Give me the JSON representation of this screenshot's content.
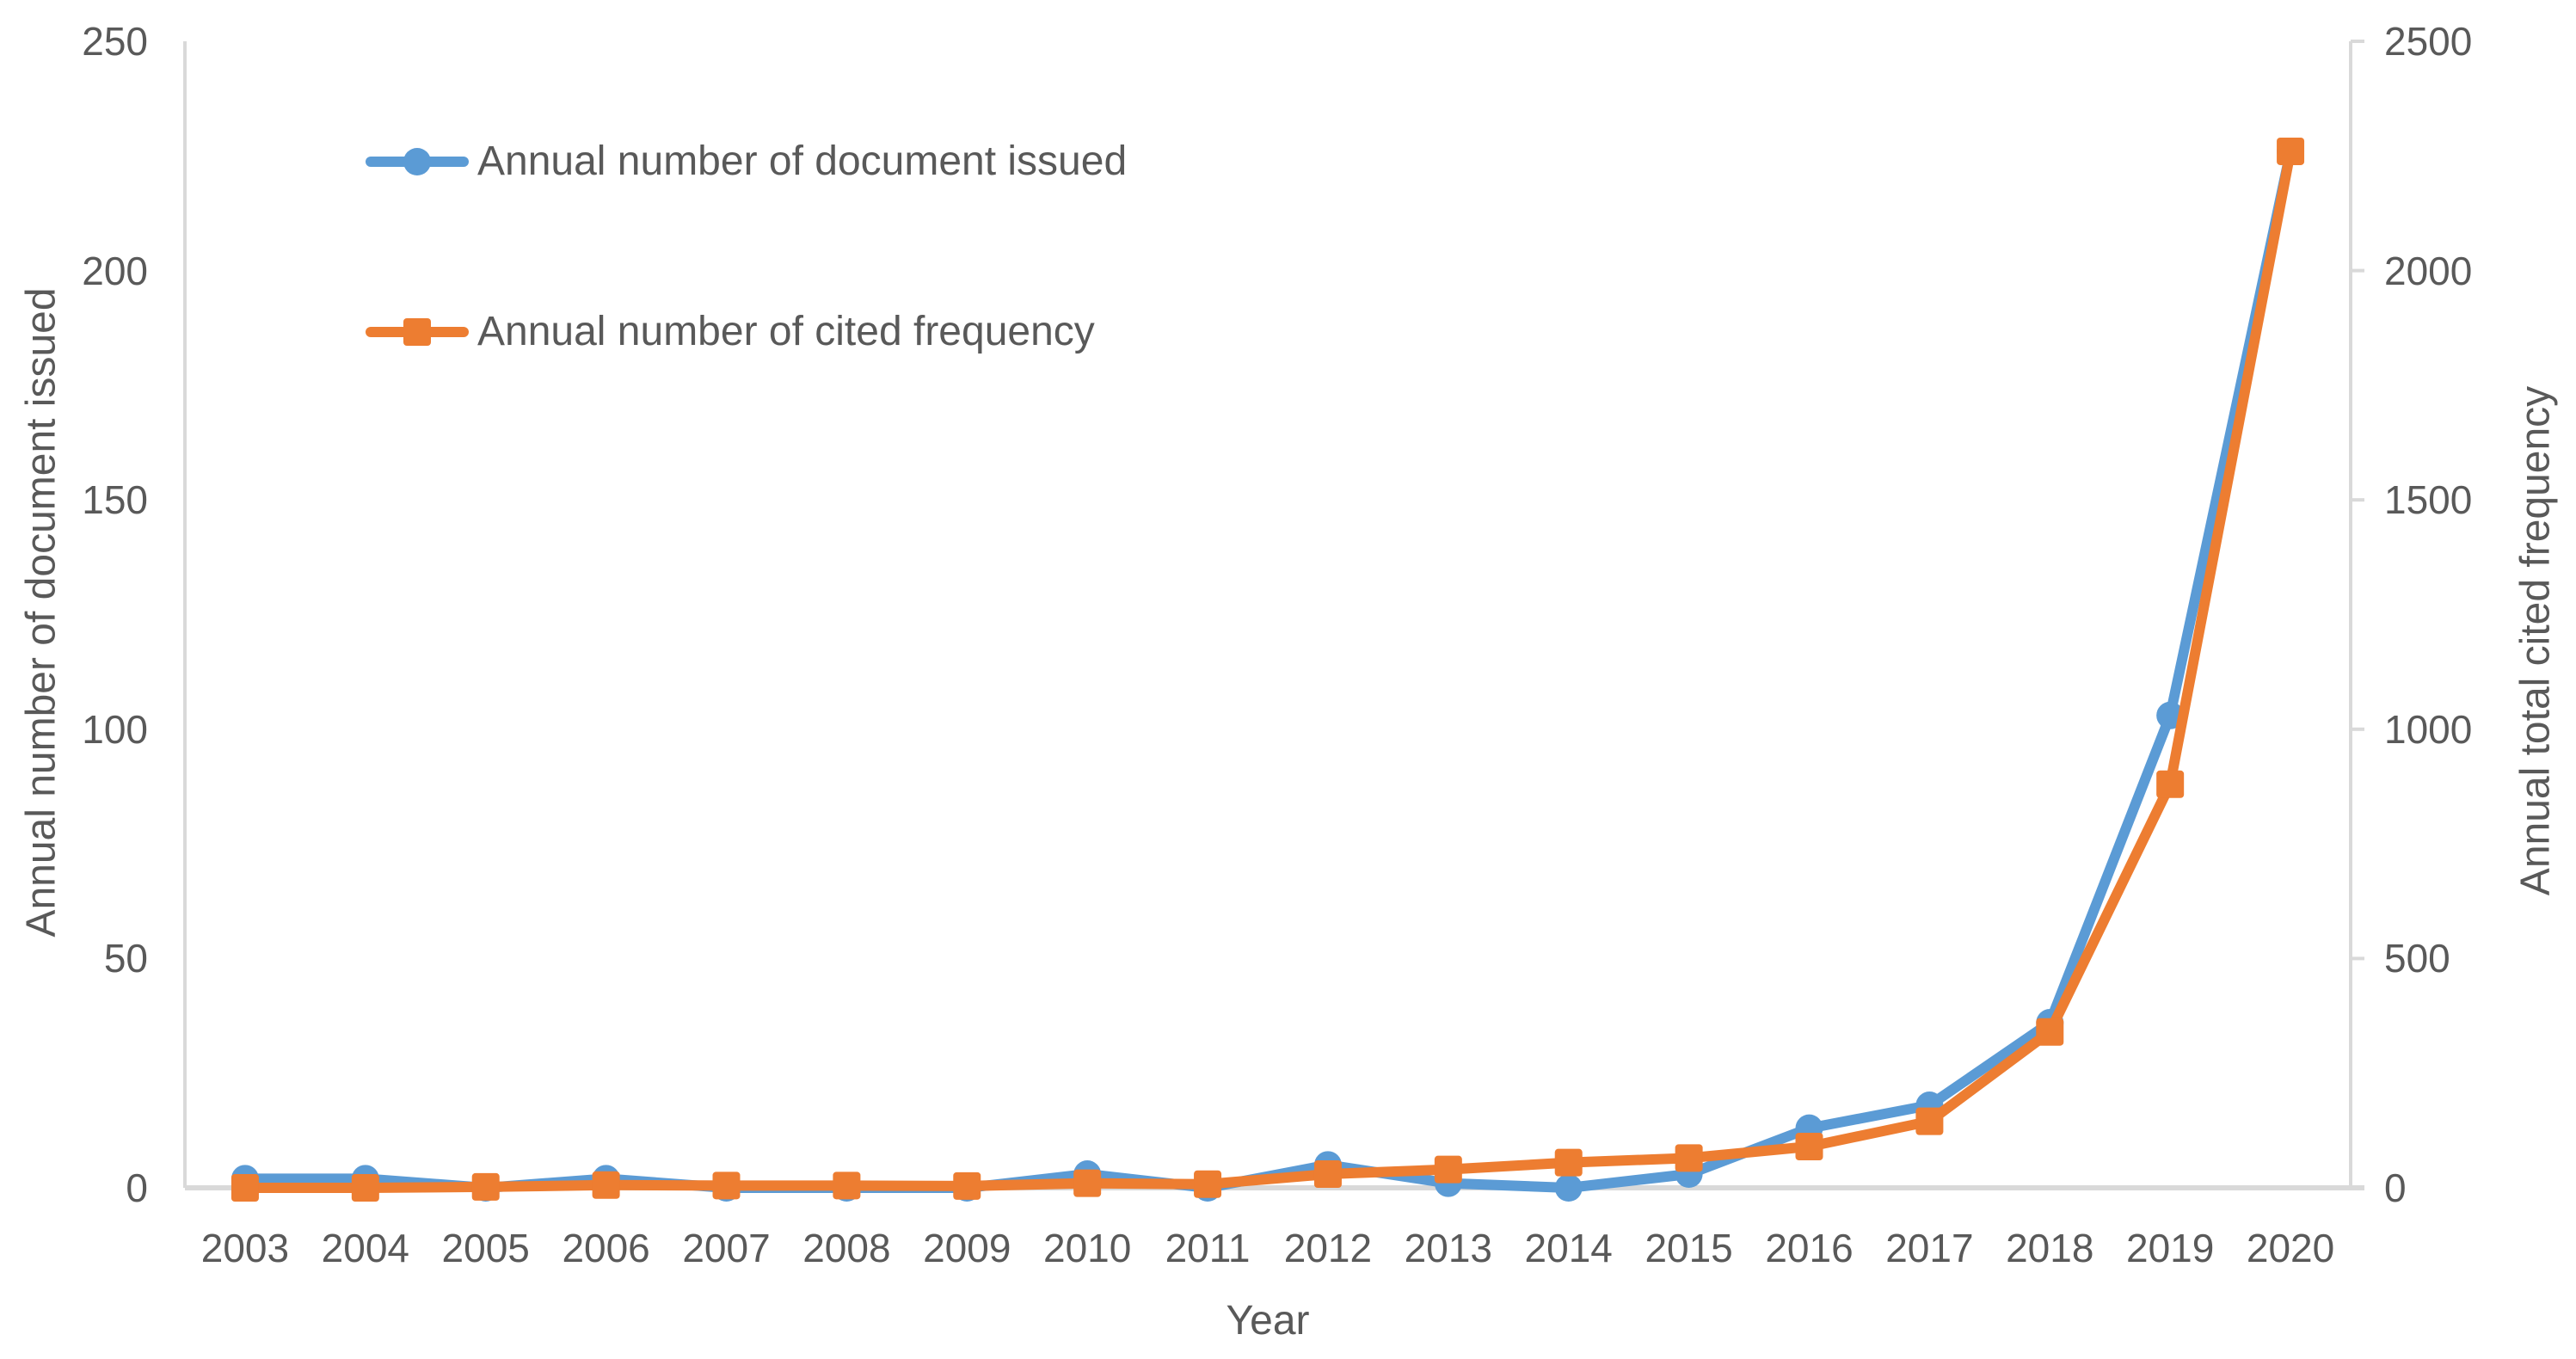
{
  "chart_data": {
    "type": "line",
    "title": "",
    "xlabel": "Year",
    "ylabel_left": "Annual number of document issued",
    "ylabel_right": "Annual total cited frequency",
    "categories": [
      "2003",
      "2004",
      "2005",
      "2006",
      "2007",
      "2008",
      "2009",
      "2010",
      "2011",
      "2012",
      "2013",
      "2014",
      "2015",
      "2016",
      "2017",
      "2018",
      "2019",
      "2020"
    ],
    "series": [
      {
        "name": "Annual number of document issued",
        "axis": "left",
        "color": "#5B9BD5",
        "marker": "circle",
        "values": [
          2,
          2,
          0,
          2,
          0,
          0,
          0,
          3,
          0,
          5,
          1,
          0,
          3,
          13,
          18,
          36,
          103,
          226
        ]
      },
      {
        "name": "Annual number of cited frequency",
        "axis": "right",
        "color": "#ED7D31",
        "marker": "square",
        "values": [
          0,
          0,
          2,
          6,
          5,
          5,
          4,
          10,
          8,
          30,
          40,
          55,
          65,
          90,
          145,
          340,
          880,
          2260
        ]
      }
    ],
    "ylim_left": [
      0,
      250
    ],
    "yticks_left": [
      "0",
      "50",
      "100",
      "150",
      "200",
      "250"
    ],
    "ylim_right": [
      0,
      2500
    ],
    "yticks_right": [
      "0",
      "500",
      "1000",
      "1500",
      "2000",
      "2500"
    ],
    "grid": false,
    "legend_position": "upper-left-inside",
    "text_color": "#595959",
    "axis_line_color": "#D9D9D9"
  }
}
